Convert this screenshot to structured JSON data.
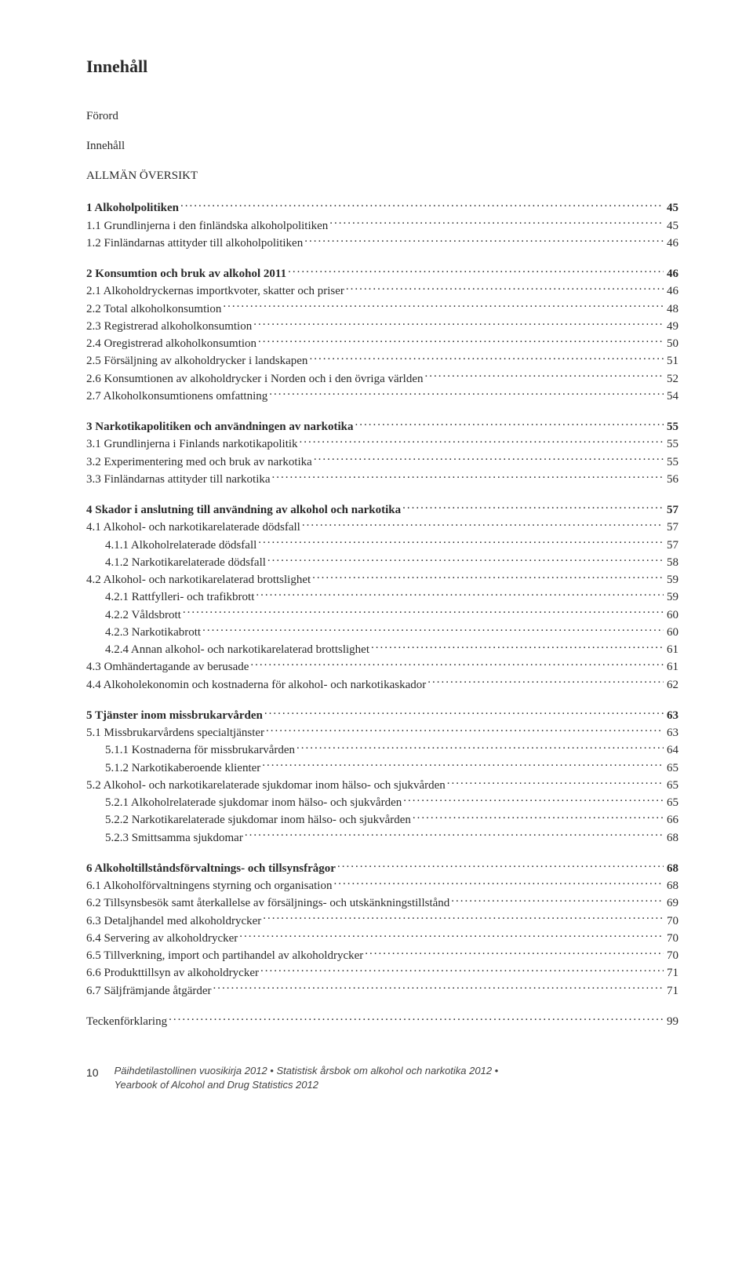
{
  "title": "Innehåll",
  "front": {
    "l1": "Förord",
    "l2": "Innehåll",
    "heading": "ALLMÄN ÖVERSIKT"
  },
  "sections": [
    {
      "rows": [
        {
          "label": "1 Alkoholpolitiken",
          "page": "45",
          "bold": true,
          "indent": 1
        },
        {
          "label": "1.1 Grundlinjerna i den finländska alkoholpolitiken",
          "page": "45",
          "indent": 1
        },
        {
          "label": "1.2 Finländarnas attityder till alkoholpolitiken",
          "page": "46",
          "indent": 1
        }
      ]
    },
    {
      "rows": [
        {
          "label": "2 Konsumtion och bruk av alkohol 2011",
          "page": "46",
          "bold": true,
          "indent": 1
        },
        {
          "label": "2.1 Alkoholdryckernas importkvoter, skatter och priser",
          "page": "46",
          "indent": 1
        },
        {
          "label": "2.2 Total alkoholkonsumtion",
          "page": "48",
          "indent": 1
        },
        {
          "label": "2.3 Registrerad alkoholkonsumtion",
          "page": "49",
          "indent": 1
        },
        {
          "label": "2.4 Oregistrerad alkoholkonsumtion",
          "page": "50",
          "indent": 1
        },
        {
          "label": "2.5 Försäljning av alkoholdrycker i landskapen",
          "page": "51",
          "indent": 1
        },
        {
          "label": "2.6 Konsumtionen av alkoholdrycker i Norden och i den övriga världen",
          "page": "52",
          "indent": 1
        },
        {
          "label": "2.7 Alkoholkonsumtionens omfattning",
          "page": "54",
          "indent": 1
        }
      ]
    },
    {
      "rows": [
        {
          "label": "3 Narkotikapolitiken och användningen av narkotika",
          "page": "55",
          "bold": true,
          "indent": 1
        },
        {
          "label": "3.1 Grundlinjerna i Finlands narkotikapolitik",
          "page": "55",
          "indent": 1
        },
        {
          "label": "3.2 Experimentering med och bruk av narkotika",
          "page": "55",
          "indent": 1
        },
        {
          "label": "3.3 Finländarnas attityder till narkotika",
          "page": "56",
          "indent": 1
        }
      ]
    },
    {
      "rows": [
        {
          "label": "4 Skador i anslutning till användning av alkohol och narkotika",
          "page": "57",
          "bold": true,
          "indent": 1
        },
        {
          "label": "4.1 Alkohol- och narkotikarelaterade dödsfall",
          "page": "57",
          "indent": 1
        },
        {
          "label": "4.1.1 Alkoholrelaterade dödsfall",
          "page": "57",
          "indent": 2
        },
        {
          "label": "4.1.2 Narkotikarelaterade dödsfall",
          "page": "58",
          "indent": 2
        },
        {
          "label": "4.2 Alkohol- och narkotikarelaterad brottslighet",
          "page": "59",
          "indent": 1
        },
        {
          "label": "4.2.1 Rattfylleri- och trafikbrott",
          "page": "59",
          "indent": 2
        },
        {
          "label": "4.2.2 Våldsbrott",
          "page": "60",
          "indent": 2
        },
        {
          "label": "4.2.3 Narkotikabrott",
          "page": "60",
          "indent": 2
        },
        {
          "label": "4.2.4 Annan alkohol- och narkotikarelaterad brottslighet",
          "page": "61",
          "indent": 2
        },
        {
          "label": "4.3 Omhändertagande av berusade",
          "page": "61",
          "indent": 1
        },
        {
          "label": "4.4 Alkoholekonomin och kostnaderna för alkohol- och narkotikaskador",
          "page": "62",
          "indent": 1
        }
      ]
    },
    {
      "rows": [
        {
          "label": "5 Tjänster inom missbrukarvården",
          "page": "63",
          "bold": true,
          "indent": 1
        },
        {
          "label": "5.1 Missbrukarvårdens specialtjänster",
          "page": "63",
          "indent": 1
        },
        {
          "label": "5.1.1 Kostnaderna för missbrukarvården",
          "page": "64",
          "indent": 2
        },
        {
          "label": "5.1.2 Narkotikaberoende klienter",
          "page": "65",
          "indent": 2
        },
        {
          "label": "5.2 Alkohol- och narkotikarelaterade sjukdomar inom hälso- och sjukvården",
          "page": "65",
          "indent": 1
        },
        {
          "label": "5.2.1 Alkoholrelaterade sjukdomar inom hälso- och sjukvården",
          "page": "65",
          "indent": 2
        },
        {
          "label": "5.2.2 Narkotikarelaterade sjukdomar inom hälso- och sjukvården",
          "page": "66",
          "indent": 2
        },
        {
          "label": "5.2.3 Smittsamma sjukdomar",
          "page": "68",
          "indent": 2
        }
      ]
    },
    {
      "rows": [
        {
          "label": "6 Alkoholtillståndsförvaltnings- och tillsynsfrågor",
          "page": "68",
          "bold": true,
          "indent": 1
        },
        {
          "label": "6.1 Alkoholförvaltningens styrning och organisation",
          "page": "68",
          "indent": 1
        },
        {
          "label": "6.2 Tillsynsbesök samt återkallelse av försäljnings- och utskänkningstillstånd",
          "page": "69",
          "indent": 1
        },
        {
          "label": "6.3 Detaljhandel med alkoholdrycker",
          "page": "70",
          "indent": 1
        },
        {
          "label": "6.4 Servering av alkoholdrycker",
          "page": "70",
          "indent": 1
        },
        {
          "label": "6.5 Tillverkning, import och partihandel av alkoholdrycker",
          "page": "70",
          "indent": 1
        },
        {
          "label": "6.6 Produkttillsyn av alkoholdrycker",
          "page": "71",
          "indent": 1
        },
        {
          "label": "6.7 Säljfrämjande åtgärder",
          "page": "71",
          "indent": 1
        }
      ]
    },
    {
      "rows": [
        {
          "label": "Teckenförklaring",
          "page": "99",
          "indent": 1
        }
      ]
    }
  ],
  "footer": {
    "page_number": "10",
    "line1": "Päihdetilastollinen vuosikirja 2012  •  Statistisk årsbok om alkohol och narkotika 2012  •",
    "line2": "Yearbook of Alcohol and Drug Statistics 2012"
  }
}
